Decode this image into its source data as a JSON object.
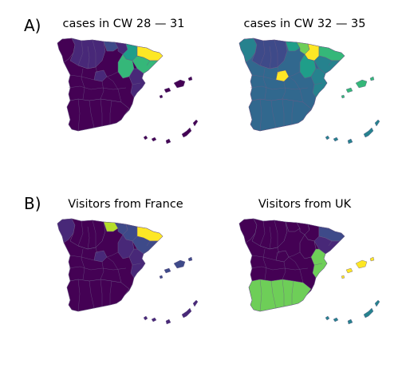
{
  "figure": {
    "panel_labels": [
      "A)",
      "B)"
    ],
    "palette": {
      "v0": "#440154",
      "v1": "#482878",
      "v2": "#3e4a89",
      "v3": "#31688e",
      "v4": "#26828e",
      "v5": "#1f9e89",
      "v6": "#35b779",
      "v7": "#6ece58",
      "v8": "#b5de2b",
      "v9": "#fde725",
      "border": "#6b5a86"
    },
    "maps": [
      {
        "title": "cases in CW 28 — 31",
        "panel": "A)",
        "base_level": 0,
        "regions": [
          {
            "id": "catalonia-north",
            "level": 9
          },
          {
            "id": "catalonia-south",
            "level": 6
          },
          {
            "id": "aragon-north",
            "level": 5
          },
          {
            "id": "aragon-south",
            "level": 6
          },
          {
            "id": "navarre",
            "level": 1
          },
          {
            "id": "basque",
            "level": 2
          },
          {
            "id": "madrid",
            "level": 1
          },
          {
            "id": "valencia",
            "level": 1
          },
          {
            "id": "balearic",
            "level": 0
          },
          {
            "id": "canary",
            "level": 0
          },
          {
            "id": "andalusia",
            "level": 0
          },
          {
            "id": "galicia",
            "level": 0
          },
          {
            "id": "castile-leon",
            "level": 1
          }
        ]
      },
      {
        "title": "cases in CW 32 — 35",
        "panel": "A)",
        "base_level": 3,
        "regions": [
          {
            "id": "catalonia-north",
            "level": 6
          },
          {
            "id": "catalonia-south",
            "level": 4
          },
          {
            "id": "aragon-north",
            "level": 9
          },
          {
            "id": "aragon-south",
            "level": 5
          },
          {
            "id": "navarre",
            "level": 7
          },
          {
            "id": "basque",
            "level": 5
          },
          {
            "id": "madrid",
            "level": 9
          },
          {
            "id": "valencia",
            "level": 4
          },
          {
            "id": "balearic",
            "level": 6
          },
          {
            "id": "canary",
            "level": 4
          },
          {
            "id": "andalusia",
            "level": 3
          },
          {
            "id": "galicia",
            "level": 4
          },
          {
            "id": "castile-leon",
            "level": 2
          }
        ]
      },
      {
        "title": "Visitors from France",
        "panel": "B)",
        "base_level": 0,
        "regions": [
          {
            "id": "catalonia-north",
            "level": 9
          },
          {
            "id": "catalonia-south",
            "level": 2
          },
          {
            "id": "aragon-north",
            "level": 2
          },
          {
            "id": "aragon-south",
            "level": 1
          },
          {
            "id": "navarre",
            "level": 2
          },
          {
            "id": "basque",
            "level": 8
          },
          {
            "id": "madrid",
            "level": 1
          },
          {
            "id": "valencia",
            "level": 1
          },
          {
            "id": "balearic",
            "level": 2
          },
          {
            "id": "canary",
            "level": 1
          },
          {
            "id": "andalusia",
            "level": 0
          },
          {
            "id": "galicia",
            "level": 1
          },
          {
            "id": "castile-leon",
            "level": 0
          }
        ]
      },
      {
        "title": "Visitors from UK",
        "panel": "B)",
        "base_level": 0,
        "regions": [
          {
            "id": "catalonia-north",
            "level": 2
          },
          {
            "id": "catalonia-south",
            "level": 1
          },
          {
            "id": "aragon-north",
            "level": 0
          },
          {
            "id": "aragon-south",
            "level": 0
          },
          {
            "id": "navarre",
            "level": 0
          },
          {
            "id": "basque",
            "level": 0
          },
          {
            "id": "madrid",
            "level": 0
          },
          {
            "id": "valencia",
            "level": 7
          },
          {
            "id": "balearic",
            "level": 9
          },
          {
            "id": "canary",
            "level": 4
          },
          {
            "id": "andalusia",
            "level": 7
          },
          {
            "id": "galicia",
            "level": 0
          },
          {
            "id": "castile-leon",
            "level": 0
          }
        ]
      }
    ]
  }
}
